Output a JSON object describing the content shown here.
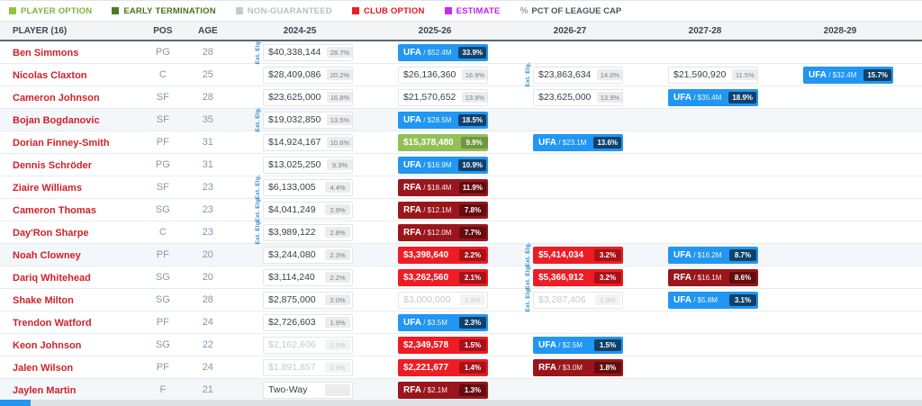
{
  "legend": {
    "items": [
      {
        "label": "PLAYER OPTION",
        "color": "#8dc63f",
        "text_color": "#7cb43c"
      },
      {
        "label": "EARLY TERMINATION",
        "color": "#4c7d22",
        "text_color": "#47741f"
      },
      {
        "label": "NON-GUARANTEED",
        "color": "#c3c9cf",
        "text_color": "#b9c0c6"
      },
      {
        "label": "CLUB OPTION",
        "color": "#ee1c25",
        "text_color": "#e4161f"
      },
      {
        "label": "ESTIMATE",
        "color": "#c92bf0",
        "text_color": "#c21fef"
      }
    ],
    "pct_note": {
      "icon": "percent-icon",
      "symbol": "%",
      "label": "PCT OF LEAGUE CAP"
    }
  },
  "table": {
    "header": {
      "player": "PLAYER (16)",
      "pos": "POS",
      "age": "AGE",
      "years": [
        "2024-25",
        "2025-26",
        "2026-27",
        "2027-28",
        "2028-29"
      ]
    },
    "ext_tag": "Ext. Elg.",
    "rows": [
      {
        "name": "Ben Simmons",
        "pos": "PG",
        "age": "28",
        "cells": [
          {
            "kind": "salary",
            "amount": "$40,338,144",
            "pct": "28.7%",
            "tag": true
          },
          {
            "kind": "fa",
            "fa": "UFA",
            "amount": "$52.4M",
            "pct": "33.9%"
          },
          null,
          null,
          null
        ]
      },
      {
        "name": "Nicolas Claxton",
        "pos": "C",
        "age": "25",
        "cells": [
          {
            "kind": "salary",
            "amount": "$28,409,086",
            "pct": "20.2%"
          },
          {
            "kind": "salary",
            "amount": "$26,136,360",
            "pct": "16.9%"
          },
          {
            "kind": "salary",
            "amount": "$23,863,634",
            "pct": "14.0%",
            "tag": true
          },
          {
            "kind": "salary",
            "amount": "$21,590,920",
            "pct": "11.5%"
          },
          {
            "kind": "fa",
            "fa": "UFA",
            "amount": "$32.4M",
            "pct": "15.7%"
          }
        ]
      },
      {
        "name": "Cameron Johnson",
        "pos": "SF",
        "age": "28",
        "cells": [
          {
            "kind": "salary",
            "amount": "$23,625,000",
            "pct": "16.8%"
          },
          {
            "kind": "salary",
            "amount": "$21,570,652",
            "pct": "13.9%"
          },
          {
            "kind": "salary",
            "amount": "$23,625,000",
            "pct": "13.9%"
          },
          {
            "kind": "fa",
            "fa": "UFA",
            "amount": "$35.4M",
            "pct": "18.9%"
          },
          null
        ]
      },
      {
        "name": "Bojan Bogdanovic",
        "pos": "SF",
        "age": "35",
        "cells": [
          {
            "kind": "salary",
            "amount": "$19,032,850",
            "pct": "13.5%",
            "tag": true
          },
          {
            "kind": "fa",
            "fa": "UFA",
            "amount": "$28.5M",
            "pct": "18.5%"
          },
          null,
          null,
          null
        ]
      },
      {
        "name": "Dorian Finney-Smith",
        "pos": "PF",
        "age": "31",
        "cells": [
          {
            "kind": "salary",
            "amount": "$14,924,167",
            "pct": "10.6%"
          },
          {
            "kind": "option",
            "option": "player",
            "amount": "$15,378,480",
            "pct": "9.9%"
          },
          {
            "kind": "fa",
            "fa": "UFA",
            "amount": "$23.1M",
            "pct": "13.6%"
          },
          null,
          null
        ]
      },
      {
        "name": "Dennis Schröder",
        "pos": "PG",
        "age": "31",
        "cells": [
          {
            "kind": "salary",
            "amount": "$13,025,250",
            "pct": "9.3%"
          },
          {
            "kind": "fa",
            "fa": "UFA",
            "amount": "$16.9M",
            "pct": "10.9%"
          },
          null,
          null,
          null
        ]
      },
      {
        "name": "Ziaire Williams",
        "pos": "SF",
        "age": "23",
        "cells": [
          {
            "kind": "salary",
            "amount": "$6,133,005",
            "pct": "4.4%",
            "tag": true
          },
          {
            "kind": "fa",
            "fa": "RFA",
            "amount": "$18.4M",
            "pct": "11.9%"
          },
          null,
          null,
          null
        ]
      },
      {
        "name": "Cameron Thomas",
        "pos": "SG",
        "age": "23",
        "cells": [
          {
            "kind": "salary",
            "amount": "$4,041,249",
            "pct": "2.9%",
            "tag": true
          },
          {
            "kind": "fa",
            "fa": "RFA",
            "amount": "$12.1M",
            "pct": "7.8%"
          },
          null,
          null,
          null
        ]
      },
      {
        "name": "Day'Ron Sharpe",
        "pos": "C",
        "age": "23",
        "cells": [
          {
            "kind": "salary",
            "amount": "$3,989,122",
            "pct": "2.8%",
            "tag": true
          },
          {
            "kind": "fa",
            "fa": "RFA",
            "amount": "$12.0M",
            "pct": "7.7%"
          },
          null,
          null,
          null
        ]
      },
      {
        "name": "Noah Clowney",
        "pos": "PF",
        "age": "20",
        "cells": [
          {
            "kind": "salary",
            "amount": "$3,244,080",
            "pct": "2.3%"
          },
          {
            "kind": "option",
            "option": "club",
            "amount": "$3,398,640",
            "pct": "2.2%"
          },
          {
            "kind": "option",
            "option": "club",
            "amount": "$5,414,034",
            "pct": "3.2%",
            "tag": true
          },
          {
            "kind": "fa",
            "fa": "UFA",
            "amount": "$16.2M",
            "pct": "8.7%"
          },
          null
        ]
      },
      {
        "name": "Dariq Whitehead",
        "pos": "SG",
        "age": "20",
        "cells": [
          {
            "kind": "salary",
            "amount": "$3,114,240",
            "pct": "2.2%"
          },
          {
            "kind": "option",
            "option": "club",
            "amount": "$3,262,560",
            "pct": "2.1%"
          },
          {
            "kind": "option",
            "option": "club",
            "amount": "$5,366,912",
            "pct": "3.2%",
            "tag": true
          },
          {
            "kind": "fa",
            "fa": "RFA",
            "amount": "$16.1M",
            "pct": "8.6%"
          },
          null
        ]
      },
      {
        "name": "Shake Milton",
        "pos": "SG",
        "age": "28",
        "cells": [
          {
            "kind": "salary",
            "amount": "$2,875,000",
            "pct": "2.0%"
          },
          {
            "kind": "salary",
            "amount": "$3,000,000",
            "pct": "1.9%",
            "muted": true
          },
          {
            "kind": "salary",
            "amount": "$3,287,406",
            "pct": "1.9%",
            "muted": true,
            "tag": true
          },
          {
            "kind": "fa",
            "fa": "UFA",
            "amount": "$5.8M",
            "pct": "3.1%"
          },
          null
        ]
      },
      {
        "name": "Trendon Watford",
        "pos": "PF",
        "age": "24",
        "cells": [
          {
            "kind": "salary",
            "amount": "$2,726,603",
            "pct": "1.9%"
          },
          {
            "kind": "fa",
            "fa": "UFA",
            "amount": "$3.5M",
            "pct": "2.3%"
          },
          null,
          null,
          null
        ]
      },
      {
        "name": "Keon Johnson",
        "pos": "SG",
        "age": "22",
        "cells": [
          {
            "kind": "salary",
            "amount": "$2,162,606",
            "pct": "1.5%",
            "muted": true
          },
          {
            "kind": "option",
            "option": "club",
            "amount": "$2,349,578",
            "pct": "1.5%"
          },
          {
            "kind": "fa",
            "fa": "UFA",
            "amount": "$2.5M",
            "pct": "1.5%"
          },
          null,
          null
        ]
      },
      {
        "name": "Jalen Wilson",
        "pos": "PF",
        "age": "24",
        "cells": [
          {
            "kind": "salary",
            "amount": "$1,891,857",
            "pct": "1.3%",
            "muted": true
          },
          {
            "kind": "option",
            "option": "club",
            "amount": "$2,221,677",
            "pct": "1.4%"
          },
          {
            "kind": "fa",
            "fa": "RFA",
            "amount": "$3.0M",
            "pct": "1.8%"
          },
          null,
          null
        ]
      },
      {
        "name": "Jaylen Martin",
        "pos": "F",
        "age": "21",
        "cells": [
          {
            "kind": "twoway",
            "label": "Two-Way"
          },
          {
            "kind": "fa",
            "fa": "RFA",
            "amount": "$2.1M",
            "pct": "1.3%"
          },
          null,
          null,
          null
        ]
      }
    ]
  },
  "colors": {
    "link": "#d0212a",
    "pos_age": "#8598ab",
    "tag": "#2e8bc7",
    "ufa": "#2196f3",
    "ufa_chip": "#11416b",
    "rfa": "#9a161b",
    "rfa_chip": "#630d10",
    "club": "#ee1c25",
    "club_chip": "#a81117",
    "player": "#94bf58",
    "player_chip": "#6e9840"
  }
}
